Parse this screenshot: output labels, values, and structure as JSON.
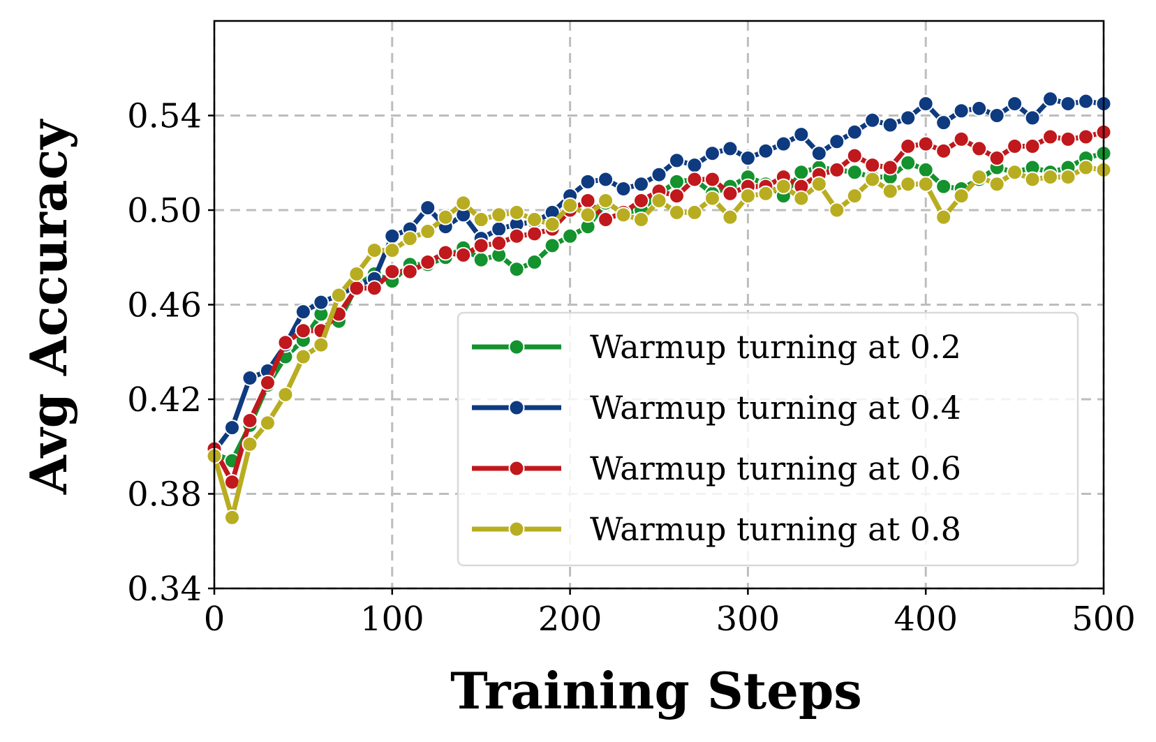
{
  "chart_data": {
    "type": "line",
    "title": "",
    "xlabel": "Training Steps",
    "ylabel": "Avg Accuracy",
    "xlim": [
      0,
      500
    ],
    "ylim": [
      0.34,
      0.58
    ],
    "xticks": [
      0,
      100,
      200,
      300,
      400,
      500
    ],
    "xtick_labels": [
      "0",
      "100",
      "200",
      "300",
      "400",
      "500"
    ],
    "yticks": [
      0.34,
      0.38,
      0.42,
      0.46,
      0.5,
      0.54
    ],
    "ytick_labels": [
      "0.34",
      "0.38",
      "0.42",
      "0.46",
      "0.50",
      "0.54"
    ],
    "grid": true,
    "legend_position": "lower-right",
    "x": [
      0,
      10,
      20,
      30,
      40,
      50,
      60,
      70,
      80,
      90,
      100,
      110,
      120,
      130,
      140,
      150,
      160,
      170,
      180,
      190,
      200,
      210,
      220,
      230,
      240,
      250,
      260,
      270,
      280,
      290,
      300,
      310,
      320,
      330,
      340,
      350,
      360,
      370,
      380,
      390,
      400,
      410,
      420,
      430,
      440,
      450,
      460,
      470,
      480,
      490,
      500
    ],
    "series": [
      {
        "name": "Warmup turning at 0.2",
        "color": "#13922e",
        "values": [
          0.397,
          0.394,
          0.409,
          0.426,
          0.438,
          0.445,
          0.456,
          0.453,
          0.468,
          0.473,
          0.47,
          0.477,
          0.477,
          0.48,
          0.484,
          0.479,
          0.481,
          0.475,
          0.478,
          0.485,
          0.489,
          0.493,
          0.503,
          0.499,
          0.5,
          0.507,
          0.512,
          0.513,
          0.507,
          0.51,
          0.514,
          0.511,
          0.506,
          0.516,
          0.518,
          0.517,
          0.516,
          0.514,
          0.514,
          0.52,
          0.517,
          0.51,
          0.509,
          0.513,
          0.518,
          0.516,
          0.518,
          0.516,
          0.518,
          0.522,
          0.524
        ]
      },
      {
        "name": "Warmup turning at 0.4",
        "color": "#0e3a80",
        "values": [
          0.398,
          0.408,
          0.429,
          0.432,
          0.443,
          0.457,
          0.461,
          0.464,
          0.468,
          0.471,
          0.489,
          0.492,
          0.501,
          0.493,
          0.498,
          0.488,
          0.492,
          0.494,
          0.495,
          0.499,
          0.506,
          0.512,
          0.513,
          0.509,
          0.511,
          0.515,
          0.521,
          0.519,
          0.524,
          0.526,
          0.522,
          0.525,
          0.528,
          0.532,
          0.524,
          0.529,
          0.533,
          0.538,
          0.536,
          0.539,
          0.545,
          0.537,
          0.542,
          0.543,
          0.54,
          0.545,
          0.539,
          0.547,
          0.545,
          0.546,
          0.545
        ]
      },
      {
        "name": "Warmup turning at 0.6",
        "color": "#c0181c",
        "values": [
          0.399,
          0.385,
          0.411,
          0.427,
          0.444,
          0.449,
          0.449,
          0.456,
          0.467,
          0.467,
          0.474,
          0.474,
          0.478,
          0.482,
          0.481,
          0.485,
          0.486,
          0.489,
          0.49,
          0.492,
          0.5,
          0.504,
          0.496,
          0.499,
          0.504,
          0.508,
          0.506,
          0.513,
          0.513,
          0.507,
          0.51,
          0.51,
          0.514,
          0.51,
          0.515,
          0.517,
          0.523,
          0.519,
          0.518,
          0.527,
          0.528,
          0.525,
          0.53,
          0.526,
          0.522,
          0.527,
          0.527,
          0.531,
          0.53,
          0.531,
          0.533
        ]
      },
      {
        "name": "Warmup turning at 0.8",
        "color": "#b8ad20",
        "values": [
          0.396,
          0.37,
          0.401,
          0.41,
          0.422,
          0.438,
          0.443,
          0.464,
          0.473,
          0.483,
          0.483,
          0.488,
          0.491,
          0.497,
          0.503,
          0.496,
          0.498,
          0.499,
          0.496,
          0.494,
          0.502,
          0.498,
          0.504,
          0.498,
          0.496,
          0.504,
          0.499,
          0.499,
          0.505,
          0.497,
          0.506,
          0.507,
          0.51,
          0.505,
          0.511,
          0.5,
          0.506,
          0.513,
          0.508,
          0.511,
          0.511,
          0.497,
          0.506,
          0.514,
          0.511,
          0.516,
          0.513,
          0.514,
          0.514,
          0.518,
          0.517
        ]
      }
    ]
  }
}
